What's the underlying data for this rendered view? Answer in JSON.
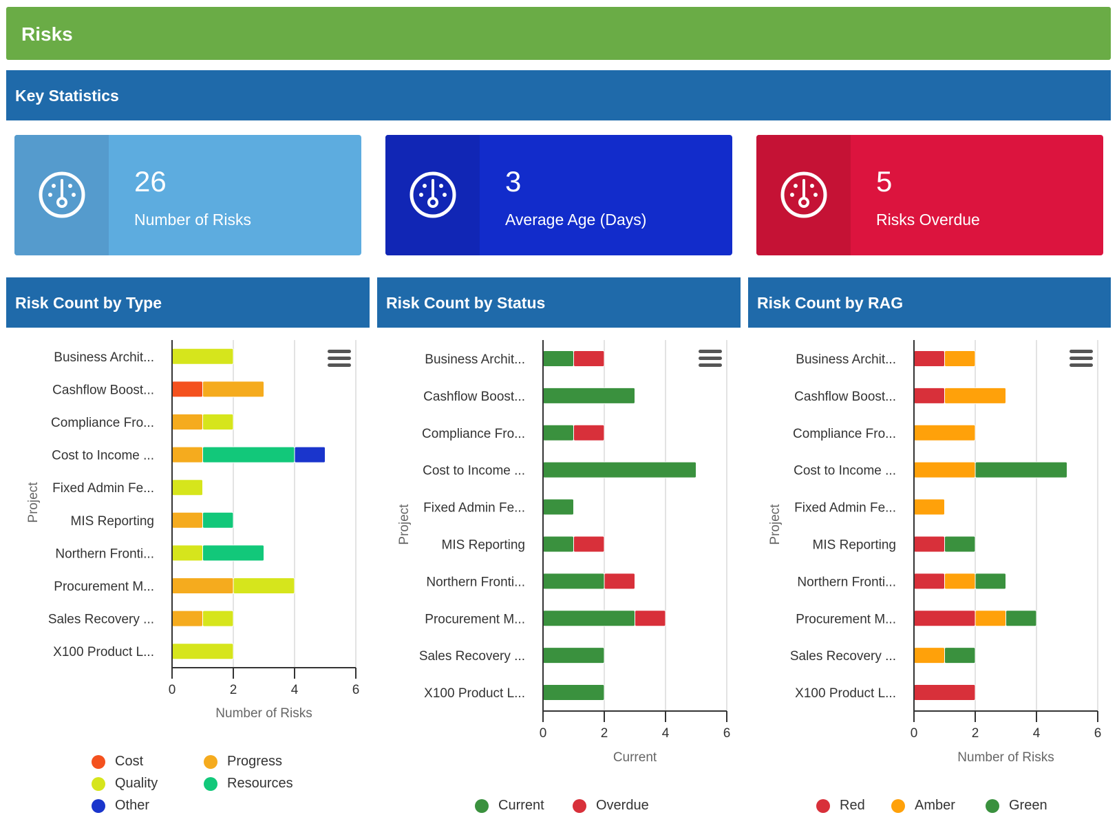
{
  "page_title": "Risks",
  "key_stats_title": "Key Statistics",
  "kpis": [
    {
      "value": "26",
      "label": "Number of Risks",
      "color": "#5dacdf",
      "icon_color": "#559bcd",
      "icon": "dashboard-icon"
    },
    {
      "value": "3",
      "label": "Average Age (Days)",
      "color": "#122ccb",
      "icon_color": "#1126b5",
      "icon": "dashboard-icon"
    },
    {
      "value": "5",
      "label": "Risks Overdue",
      "color": "#dc143e",
      "icon_color": "#c51235",
      "icon": "dashboard-icon"
    }
  ],
  "charts": {
    "type": {
      "title": "Risk Count by Type"
    },
    "status": {
      "title": "Risk Count by Status"
    },
    "rag": {
      "title": "Risk Count by RAG"
    }
  },
  "chart_data": [
    {
      "type": "bar",
      "orientation": "horizontal",
      "stacked": true,
      "title": "Risk Count by Type",
      "categories": [
        "Business Archit...",
        "Cashflow Boost...",
        "Compliance Fro...",
        "Cost to Income ...",
        "Fixed Admin Fe...",
        "MIS Reporting",
        "Northern Fronti...",
        "Procurement M...",
        "Sales Recovery ...",
        "X100 Product L..."
      ],
      "series": [
        {
          "name": "Cost",
          "color": "#f4511e",
          "values": [
            0,
            1,
            0,
            0,
            0,
            0,
            0,
            0,
            0,
            0
          ]
        },
        {
          "name": "Progress",
          "color": "#f5ab1e",
          "values": [
            0,
            2,
            1,
            1,
            0,
            1,
            0,
            2,
            1,
            0
          ]
        },
        {
          "name": "Quality",
          "color": "#d6e51c",
          "values": [
            2,
            0,
            1,
            0,
            1,
            0,
            1,
            2,
            1,
            2
          ]
        },
        {
          "name": "Resources",
          "color": "#12c87a",
          "values": [
            0,
            0,
            0,
            3,
            0,
            1,
            2,
            0,
            0,
            0
          ]
        },
        {
          "name": "Other",
          "color": "#1a35cc",
          "values": [
            0,
            0,
            0,
            1,
            0,
            0,
            0,
            0,
            0,
            0
          ]
        }
      ],
      "xlabel": "Number of Risks",
      "ylabel": "Project",
      "xlim": [
        0,
        6
      ],
      "xticks": [
        "0",
        "2",
        "4",
        "6"
      ],
      "legend_position": "bottom",
      "grid": true
    },
    {
      "type": "bar",
      "orientation": "horizontal",
      "stacked": true,
      "title": "Risk Count by Status",
      "categories": [
        "Business Archit...",
        "Cashflow Boost...",
        "Compliance Fro...",
        "Cost to Income ...",
        "Fixed Admin Fe...",
        "MIS Reporting",
        "Northern Fronti...",
        "Procurement M...",
        "Sales Recovery ...",
        "X100 Product L..."
      ],
      "series": [
        {
          "name": "Current",
          "color": "#3a913e",
          "values": [
            1,
            3,
            1,
            5,
            1,
            1,
            2,
            3,
            2,
            2
          ]
        },
        {
          "name": "Overdue",
          "color": "#d8303a",
          "values": [
            1,
            0,
            1,
            0,
            0,
            1,
            1,
            1,
            0,
            0
          ]
        }
      ],
      "xlabel": "Current",
      "ylabel": "Project",
      "xlim": [
        0,
        6
      ],
      "xticks": [
        "0",
        "2",
        "4",
        "6"
      ],
      "legend_position": "bottom",
      "grid": true
    },
    {
      "type": "bar",
      "orientation": "horizontal",
      "stacked": true,
      "title": "Risk Count by RAG",
      "categories": [
        "Business Archit...",
        "Cashflow Boost...",
        "Compliance Fro...",
        "Cost to Income ...",
        "Fixed Admin Fe...",
        "MIS Reporting",
        "Northern Fronti...",
        "Procurement M...",
        "Sales Recovery ...",
        "X100 Product L..."
      ],
      "series": [
        {
          "name": "Red",
          "color": "#d8303a",
          "values": [
            1,
            1,
            0,
            0,
            0,
            1,
            1,
            2,
            0,
            2
          ]
        },
        {
          "name": "Amber",
          "color": "#ffa10a",
          "values": [
            1,
            2,
            2,
            2,
            1,
            0,
            1,
            1,
            1,
            0
          ]
        },
        {
          "name": "Green",
          "color": "#3a913e",
          "values": [
            0,
            0,
            0,
            3,
            0,
            1,
            1,
            1,
            1,
            0
          ]
        }
      ],
      "xlabel": "Number of Risks",
      "ylabel": "Project",
      "xlim": [
        0,
        6
      ],
      "xticks": [
        "0",
        "2",
        "4",
        "6"
      ],
      "legend_position": "bottom",
      "grid": true
    }
  ]
}
